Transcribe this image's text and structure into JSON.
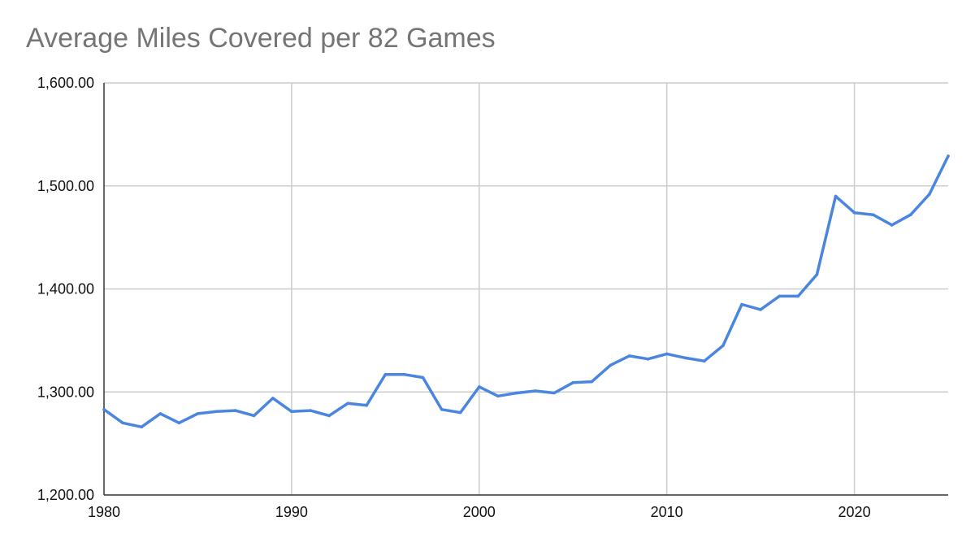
{
  "chart_data": {
    "type": "line",
    "title": "Average Miles Covered per 82 Games",
    "xlabel": "",
    "ylabel": "",
    "xlim": [
      1980,
      2025
    ],
    "ylim": [
      1200,
      1600
    ],
    "x_ticks": [
      1980,
      1990,
      2000,
      2010,
      2020
    ],
    "x_tick_labels": [
      "1980",
      "1990",
      "2000",
      "2010",
      "2020"
    ],
    "y_ticks": [
      1200,
      1300,
      1400,
      1500,
      1600
    ],
    "y_tick_labels": [
      "1,200.00",
      "1,300.00",
      "1,400.00",
      "1,500.00",
      "1,600.00"
    ],
    "grid": true,
    "legend": "none",
    "series": [
      {
        "color": "#4a86e0",
        "points": [
          [
            1980,
            1283
          ],
          [
            1981,
            1270
          ],
          [
            1982,
            1266
          ],
          [
            1983,
            1279
          ],
          [
            1984,
            1270
          ],
          [
            1985,
            1279
          ],
          [
            1986,
            1281
          ],
          [
            1987,
            1282
          ],
          [
            1988,
            1277
          ],
          [
            1989,
            1294
          ],
          [
            1990,
            1281
          ],
          [
            1991,
            1282
          ],
          [
            1992,
            1277
          ],
          [
            1993,
            1289
          ],
          [
            1994,
            1287
          ],
          [
            1995,
            1317
          ],
          [
            1996,
            1317
          ],
          [
            1997,
            1314
          ],
          [
            1998,
            1283
          ],
          [
            1999,
            1280
          ],
          [
            2000,
            1305
          ],
          [
            2001,
            1296
          ],
          [
            2002,
            1299
          ],
          [
            2003,
            1301
          ],
          [
            2004,
            1299
          ],
          [
            2005,
            1309
          ],
          [
            2006,
            1310
          ],
          [
            2007,
            1326
          ],
          [
            2008,
            1335
          ],
          [
            2009,
            1332
          ],
          [
            2010,
            1337
          ],
          [
            2011,
            1333
          ],
          [
            2012,
            1330
          ],
          [
            2013,
            1345
          ],
          [
            2014,
            1385
          ],
          [
            2015,
            1380
          ],
          [
            2016,
            1393
          ],
          [
            2017,
            1393
          ],
          [
            2018,
            1414
          ],
          [
            2019,
            1490
          ],
          [
            2020,
            1474
          ],
          [
            2021,
            1472
          ],
          [
            2022,
            1462
          ],
          [
            2023,
            1472
          ],
          [
            2024,
            1492
          ],
          [
            2025,
            1529
          ]
        ]
      }
    ]
  }
}
